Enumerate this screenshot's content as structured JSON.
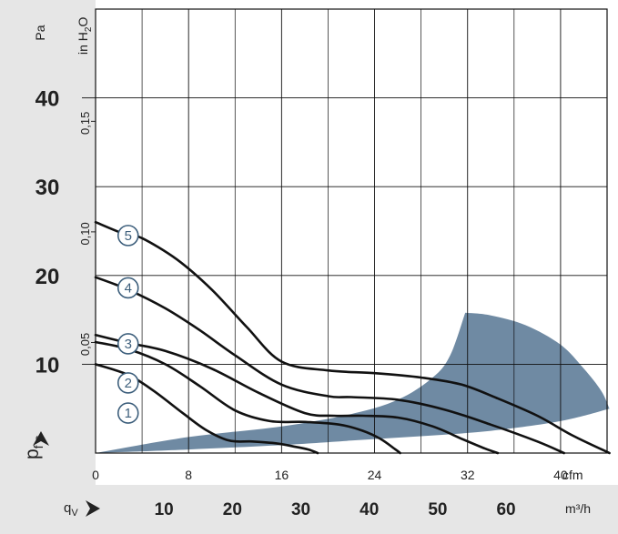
{
  "chart_data": {
    "type": "line",
    "title": "",
    "y_axis_left": {
      "label": "p",
      "label_sub": "f s",
      "unit": "Pa",
      "range": [
        0,
        50
      ],
      "ticks": [
        {
          "value": 10,
          "label": "10"
        },
        {
          "value": 20,
          "label": "20"
        },
        {
          "value": 30,
          "label": "30"
        },
        {
          "value": 40,
          "label": "40"
        }
      ]
    },
    "y_axis_right": {
      "unit": "in H",
      "unit_sub": "2",
      "unit_end": "O",
      "ticks": [
        {
          "value": 0.05,
          "label": "0,05"
        },
        {
          "value": 0.1,
          "label": "0,10"
        },
        {
          "value": 0.15,
          "label": "0,15"
        }
      ]
    },
    "x_axis_cfm": {
      "unit": "cfm",
      "range": [
        0,
        44
      ],
      "ticks": [
        {
          "value": 0,
          "label": "0"
        },
        {
          "value": 8,
          "label": "8"
        },
        {
          "value": 16,
          "label": "16"
        },
        {
          "value": 24,
          "label": "24"
        },
        {
          "value": 32,
          "label": "32"
        },
        {
          "value": 40,
          "label": "40"
        }
      ]
    },
    "x_axis_m3h": {
      "label": "q",
      "label_sub": "V",
      "unit": "m³/h",
      "ticks": [
        {
          "value": 10,
          "label": "10"
        },
        {
          "value": 20,
          "label": "20"
        },
        {
          "value": 30,
          "label": "30"
        },
        {
          "value": 40,
          "label": "40"
        },
        {
          "value": 50,
          "label": "50"
        },
        {
          "value": 60,
          "label": "60"
        }
      ]
    },
    "grid": true,
    "series": [
      {
        "name": "1",
        "label_at": [
          2.8,
          4.5
        ],
        "x": [
          0,
          2.8,
          5,
          7.5,
          9.5,
          11.5,
          13.5,
          15.5,
          17.2,
          18.3,
          19.1
        ],
        "y": [
          10,
          8.8,
          7,
          4.5,
          2.6,
          1.4,
          1.3,
          1.1,
          0.7,
          0.4,
          0
        ]
      },
      {
        "name": "2",
        "label_at": [
          2.8,
          7.9
        ],
        "x": [
          0,
          2.8,
          6,
          9,
          12,
          15,
          18,
          21,
          23,
          24.5,
          25.8,
          26.2
        ],
        "y": [
          12.5,
          11.7,
          10,
          7.5,
          4.8,
          3.6,
          3.5,
          3.2,
          2.5,
          1.6,
          0.4,
          0
        ]
      },
      {
        "name": "3",
        "label_at": [
          2.8,
          12.3
        ],
        "x": [
          0,
          2.8,
          6,
          10,
          14,
          18,
          20.5,
          23,
          26,
          29,
          31.5,
          33.5,
          34.6
        ],
        "y": [
          13.3,
          12.4,
          11.5,
          9.5,
          6.8,
          4.5,
          4.2,
          4.2,
          4.0,
          3.0,
          1.6,
          0.5,
          0
        ]
      },
      {
        "name": "4",
        "label_at": [
          2.8,
          18.6
        ],
        "x": [
          0,
          2.8,
          6,
          9,
          12,
          16,
          20,
          22,
          26,
          30,
          34,
          38,
          40.3
        ],
        "y": [
          19.8,
          18.4,
          16.3,
          13.8,
          11.0,
          7.7,
          6.4,
          6.3,
          6.0,
          4.9,
          3.2,
          1.3,
          0
        ]
      },
      {
        "name": "5",
        "label_at": [
          2.8,
          24.5
        ],
        "x": [
          0,
          2.8,
          4,
          7,
          10,
          13,
          16,
          20,
          24,
          28,
          31.5,
          34.5,
          38,
          41,
          44.2
        ],
        "y": [
          26.0,
          24.5,
          24.2,
          21.8,
          18.4,
          14.2,
          10.3,
          9.3,
          9.0,
          8.5,
          7.7,
          6.2,
          4.2,
          2.0,
          0
        ]
      }
    ],
    "operating_area": {
      "upper_x": [
        0,
        8,
        16,
        22,
        26,
        29,
        30.5,
        31.8
      ],
      "upper_y": [
        0,
        1.8,
        3.0,
        4.4,
        6.0,
        8.5,
        11.0,
        15.8
      ],
      "top_edge_x": [
        31.8,
        34,
        37,
        40,
        42,
        43.5,
        44.2
      ],
      "top_edge_y": [
        15.8,
        15.5,
        14.4,
        12.2,
        9.5,
        7.0,
        5.0
      ],
      "lower_x": [
        44.2,
        40,
        34,
        28,
        22,
        16,
        8,
        0
      ],
      "lower_y": [
        5.0,
        3.6,
        2.5,
        1.9,
        1.4,
        0.9,
        0.4,
        0
      ],
      "color": "#6f8aa3"
    },
    "colors": {
      "frame_band": "#e6e6e6",
      "grid": "#111111",
      "curve": "#111111",
      "label_circle": "#3d5f7c"
    }
  }
}
